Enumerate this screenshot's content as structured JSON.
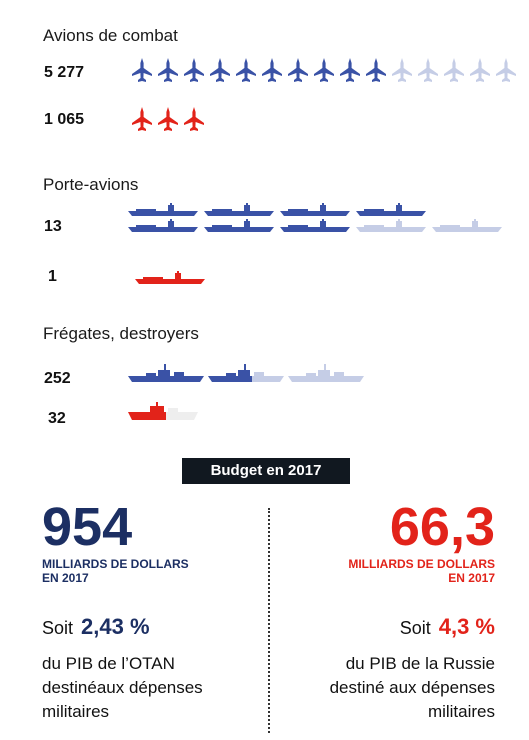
{
  "sections": {
    "fighters": {
      "title": "Avions de combat",
      "nato_count": "5 277",
      "russia_count": "1 065",
      "nato_icons_full": 10,
      "nato_icons_total": 15,
      "russia_icons": 3
    },
    "carriers": {
      "title": "Porte-avions",
      "nato_count": "13",
      "russia_count": "1"
    },
    "frigates": {
      "title": "Frégates, destroyers",
      "nato_count": "252",
      "russia_count": "32"
    }
  },
  "budget": {
    "title": "Budget en 2017",
    "nato": {
      "amount": "954",
      "unit_line1": "MILLIARDS DE DOLLARS",
      "unit_line2": "EN 2017",
      "soit": "Soit",
      "percent": "2,43 %",
      "desc1": "du PIB de l’OTAN",
      "desc2": "destinéaux dépenses",
      "desc3": "militaires"
    },
    "russia": {
      "amount": "66,3",
      "unit_line1": "MILLIARDS DE DOLLARS",
      "unit_line2": "EN 2017",
      "soit": "Soit",
      "percent": "4,3 %",
      "desc1": "du PIB de la Russie",
      "desc2": "destiné aux dépenses",
      "desc3": "militaires"
    }
  },
  "colors": {
    "nato": "#3a52a6",
    "nato_faded": "#c5cde6",
    "russia": "#e2231a",
    "dark_blue": "#1c2f63",
    "russia_faded": "#eeeeee"
  }
}
